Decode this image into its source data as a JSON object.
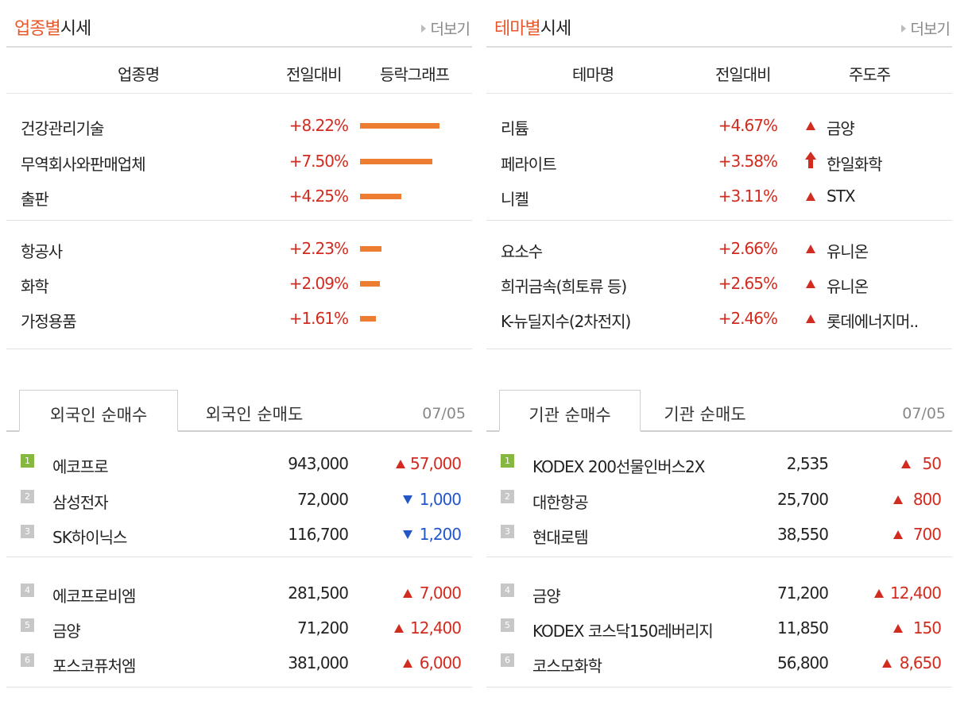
{
  "sector": {
    "title_highlight": "업종별",
    "title_rest": "시세",
    "more": "더보기",
    "headers": {
      "name": "업종명",
      "change": "전일대비",
      "graph": "등락그래프"
    },
    "rows": [
      {
        "name": "건강관리기술",
        "change": "+8.22%",
        "value": 8.22
      },
      {
        "name": "무역회사와판매업체",
        "change": "+7.50%",
        "value": 7.5
      },
      {
        "name": "출판",
        "change": "+4.25%",
        "value": 4.25
      },
      {
        "name": "항공사",
        "change": "+2.23%",
        "value": 2.23
      },
      {
        "name": "화학",
        "change": "+2.09%",
        "value": 2.09
      },
      {
        "name": "가정용품",
        "change": "+1.61%",
        "value": 1.61
      }
    ],
    "bar_color": "#ed7d31"
  },
  "theme": {
    "title_highlight": "테마별",
    "title_rest": "시세",
    "more": "더보기",
    "headers": {
      "name": "테마명",
      "change": "전일대비",
      "leader": "주도주"
    },
    "rows": [
      {
        "name": "리튬",
        "change": "+4.67%",
        "leader": "금양",
        "icon": "up-triangle-icon"
      },
      {
        "name": "페라이트",
        "change": "+3.58%",
        "leader": "한일화학",
        "icon": "up-arrow-icon"
      },
      {
        "name": "니켈",
        "change": "+3.11%",
        "leader": "STX",
        "icon": "up-triangle-icon"
      },
      {
        "name": "요소수",
        "change": "+2.66%",
        "leader": "유니온",
        "icon": "up-triangle-icon"
      },
      {
        "name": "희귀금속(희토류 등)",
        "change": "+2.65%",
        "leader": "유니온",
        "icon": "up-triangle-icon"
      },
      {
        "name": "K-뉴딜지수(2차전지)",
        "change": "+2.46%",
        "leader": "롯데에너지머..",
        "icon": "up-triangle-icon"
      }
    ]
  },
  "foreign": {
    "tab_buy": "외국인 순매수",
    "tab_sell": "외국인 순매도",
    "date": "07/05",
    "rows": [
      {
        "rank": "1",
        "name": "에코프로",
        "price": "943,000",
        "change": "57,000",
        "dir": "up"
      },
      {
        "rank": "2",
        "name": "삼성전자",
        "price": "72,000",
        "change": "1,000",
        "dir": "down"
      },
      {
        "rank": "3",
        "name": "SK하이닉스",
        "price": "116,700",
        "change": "1,200",
        "dir": "down"
      },
      {
        "rank": "4",
        "name": "에코프로비엠",
        "price": "281,500",
        "change": "7,000",
        "dir": "up"
      },
      {
        "rank": "5",
        "name": "금양",
        "price": "71,200",
        "change": "12,400",
        "dir": "up"
      },
      {
        "rank": "6",
        "name": "포스코퓨처엠",
        "price": "381,000",
        "change": "6,000",
        "dir": "up"
      }
    ]
  },
  "institution": {
    "tab_buy": "기관 순매수",
    "tab_sell": "기관 순매도",
    "date": "07/05",
    "rows": [
      {
        "rank": "1",
        "name": "KODEX 200선물인버스2X",
        "price": "2,535",
        "change": "50",
        "dir": "up"
      },
      {
        "rank": "2",
        "name": "대한항공",
        "price": "25,700",
        "change": "800",
        "dir": "up"
      },
      {
        "rank": "3",
        "name": "현대로템",
        "price": "38,550",
        "change": "700",
        "dir": "up"
      },
      {
        "rank": "4",
        "name": "금양",
        "price": "71,200",
        "change": "12,400",
        "dir": "up"
      },
      {
        "rank": "5",
        "name": "KODEX 코스닥150레버리지",
        "price": "11,850",
        "change": "150",
        "dir": "up"
      },
      {
        "rank": "6",
        "name": "코스모화학",
        "price": "56,800",
        "change": "8,650",
        "dir": "up"
      }
    ]
  },
  "colors": {
    "accent": "#e8582a",
    "up": "#d22b1f",
    "down": "#2357c7",
    "rank_first": "#86b840"
  }
}
